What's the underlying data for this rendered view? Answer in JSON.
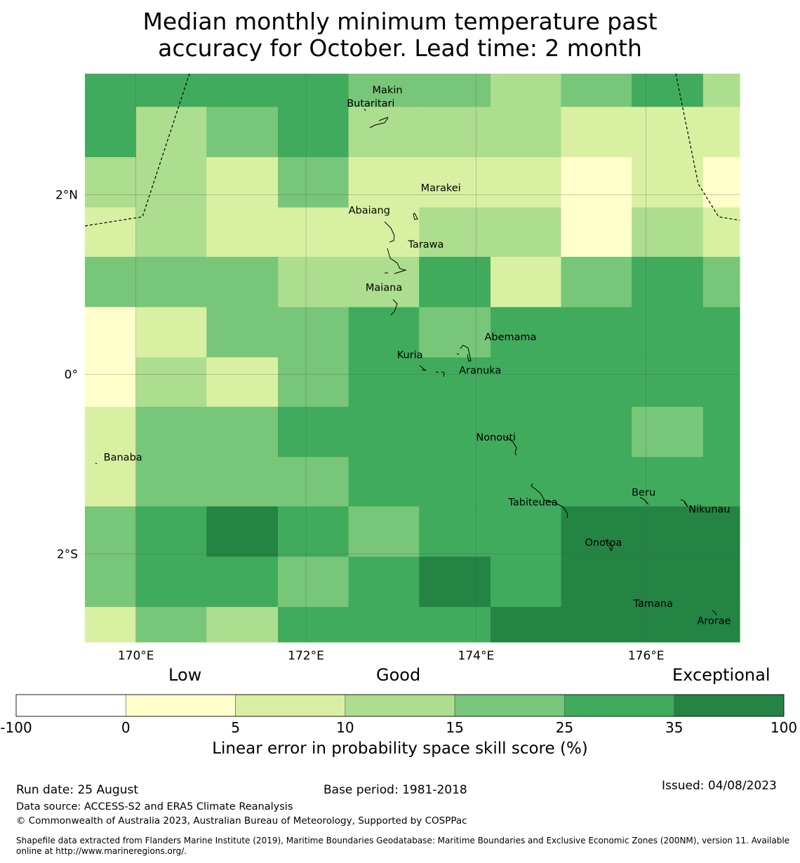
{
  "title": {
    "line1": "Median monthly minimum temperature past",
    "line2": "accuracy for October. Lead time: 2 month"
  },
  "map": {
    "lon_range": [
      169.4,
      177.1
    ],
    "lat_range": [
      -2.98,
      3.35
    ],
    "x_ticks": [
      {
        "value": 170,
        "label": "170°E"
      },
      {
        "value": 172,
        "label": "172°E"
      },
      {
        "value": 174,
        "label": "174°E"
      },
      {
        "value": 176,
        "label": "176°E"
      }
    ],
    "y_ticks": [
      {
        "value": 2,
        "label": "2°N"
      },
      {
        "value": 0,
        "label": "0°"
      },
      {
        "value": -2,
        "label": "2°S"
      }
    ],
    "grid": true,
    "grid_columns": [
      169.4,
      170.0,
      170.83,
      171.67,
      172.5,
      173.33,
      174.17,
      175.0,
      175.83,
      176.67,
      177.1
    ],
    "grid_rows": [
      3.35,
      2.98,
      2.42,
      1.86,
      1.31,
      0.75,
      0.19,
      -0.36,
      -0.92,
      -1.47,
      -2.03,
      -2.59,
      -2.98
    ],
    "skill_class_grid": [
      [
        4,
        4,
        4,
        4,
        3,
        3,
        2,
        3,
        4,
        2
      ],
      [
        4,
        2,
        3,
        4,
        2,
        2,
        2,
        1,
        1,
        1
      ],
      [
        2,
        2,
        1,
        3,
        1,
        1,
        1,
        0,
        1,
        0
      ],
      [
        1,
        2,
        1,
        1,
        1,
        2,
        2,
        0,
        2,
        1
      ],
      [
        3,
        3,
        3,
        2,
        2,
        4,
        1,
        3,
        4,
        3
      ],
      [
        0,
        1,
        3,
        3,
        4,
        3,
        4,
        4,
        4,
        4
      ],
      [
        0,
        2,
        1,
        3,
        4,
        4,
        4,
        4,
        4,
        4
      ],
      [
        1,
        3,
        3,
        4,
        4,
        4,
        4,
        4,
        3,
        4
      ],
      [
        1,
        3,
        3,
        3,
        4,
        4,
        4,
        4,
        4,
        4
      ],
      [
        3,
        4,
        5,
        4,
        3,
        4,
        4,
        5,
        5,
        5
      ],
      [
        3,
        4,
        4,
        3,
        4,
        5,
        4,
        5,
        5,
        5
      ],
      [
        1,
        3,
        2,
        4,
        4,
        4,
        5,
        5,
        5,
        5
      ],
      [
        4,
        4,
        5,
        4,
        4,
        5,
        5,
        5,
        5,
        5
      ]
    ],
    "places": [
      {
        "name": "Makin",
        "lon": 172.78,
        "lat": 3.17
      },
      {
        "name": "Butaritari",
        "lon": 172.48,
        "lat": 3.02
      },
      {
        "name": "Marakei",
        "lon": 173.35,
        "lat": 2.08
      },
      {
        "name": "Abaiang",
        "lon": 172.5,
        "lat": 1.83
      },
      {
        "name": "Tarawa",
        "lon": 173.2,
        "lat": 1.45
      },
      {
        "name": "Maiana",
        "lon": 172.7,
        "lat": 0.97
      },
      {
        "name": "Abemama",
        "lon": 174.1,
        "lat": 0.42
      },
      {
        "name": "Kuria",
        "lon": 173.07,
        "lat": 0.22
      },
      {
        "name": "Aranuka",
        "lon": 173.8,
        "lat": 0.05
      },
      {
        "name": "Banaba",
        "lon": 169.62,
        "lat": -0.92
      },
      {
        "name": "Nonouti",
        "lon": 174.0,
        "lat": -0.7
      },
      {
        "name": "Beru",
        "lon": 175.83,
        "lat": -1.31
      },
      {
        "name": "Tabiteuea",
        "lon": 174.38,
        "lat": -1.42
      },
      {
        "name": "Nikunau",
        "lon": 176.5,
        "lat": -1.5
      },
      {
        "name": "Onotoa",
        "lon": 175.28,
        "lat": -1.87
      },
      {
        "name": "Tamana",
        "lon": 175.85,
        "lat": -2.55
      },
      {
        "name": "Arorae",
        "lon": 176.6,
        "lat": -2.74
      }
    ]
  },
  "legend": {
    "categories": [
      "Low",
      "Good",
      "Exceptional"
    ],
    "colors": [
      "#ffffff",
      "#ffffcc",
      "#d9f0a3",
      "#addd8e",
      "#78c679",
      "#41ab5d",
      "#238443"
    ],
    "ticks": [
      "-100",
      "0",
      "5",
      "10",
      "15",
      "25",
      "35",
      "100"
    ],
    "title": "Linear error in probability space skill score (%)"
  },
  "footer": {
    "run_date": "Run date: 25 August",
    "base_period": "Base period: 1981-2018",
    "issued": "Issued: 04/08/2023",
    "data_source": "Data source: ACCESS-S2 and ERA5 Climate Reanalysis",
    "copyright": "© Commonwealth of Australia 2023, Australian Bureau of Meteorology, Supported by COSPPac",
    "shapefile_line1": "Shapefile data extracted from Flanders Marine Institute (2019), Maritime Boundaries Geodatabase: Maritime Boundaries and Exclusive Economic Zones (200NM), version 11. Available",
    "shapefile_line2": "online at http://www.marineregions.org/."
  }
}
